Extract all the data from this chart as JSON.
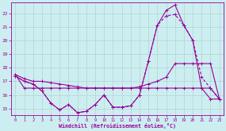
{
  "xlabel": "Windchill (Refroidissement éolien,°C)",
  "background_color": "#cceef0",
  "grid_color": "#aacccc",
  "line_color": "#990099",
  "x_values": [
    0,
    1,
    2,
    3,
    4,
    5,
    6,
    7,
    8,
    9,
    10,
    11,
    12,
    13,
    14,
    15,
    16,
    17,
    18,
    19,
    20,
    21,
    22,
    23
  ],
  "line1": [
    17.4,
    17.0,
    16.8,
    16.3,
    15.4,
    14.9,
    15.3,
    14.7,
    14.8,
    15.3,
    16.0,
    15.1,
    15.1,
    15.2,
    16.0,
    18.5,
    21.1,
    22.2,
    22.6,
    21.1,
    20.0,
    16.5,
    15.7,
    15.7
  ],
  "line2": [
    17.4,
    17.0,
    16.8,
    16.3,
    15.4,
    14.9,
    15.3,
    14.7,
    14.8,
    15.3,
    16.0,
    15.1,
    15.1,
    15.2,
    16.0,
    18.5,
    21.1,
    21.8,
    21.9,
    21.1,
    20.0,
    17.3,
    16.5,
    15.7
  ],
  "line3": [
    17.5,
    17.2,
    17.0,
    17.0,
    16.9,
    16.8,
    16.7,
    16.6,
    16.5,
    16.5,
    16.5,
    16.5,
    16.5,
    16.5,
    16.6,
    16.8,
    17.0,
    17.3,
    18.3,
    18.3,
    18.3,
    18.3,
    18.3,
    15.7
  ],
  "line4": [
    17.5,
    16.5,
    16.5,
    16.5,
    16.5,
    16.5,
    16.5,
    16.5,
    16.5,
    16.5,
    16.5,
    16.5,
    16.5,
    16.5,
    16.5,
    16.5,
    16.5,
    16.5,
    16.5,
    16.5,
    16.5,
    16.5,
    16.5,
    15.7
  ],
  "ylim": [
    14.5,
    22.8
  ],
  "xlim": [
    -0.5,
    23.5
  ],
  "yticks": [
    15,
    16,
    17,
    18,
    19,
    20,
    21,
    22
  ],
  "xticks": [
    0,
    1,
    2,
    3,
    4,
    5,
    6,
    7,
    8,
    9,
    10,
    11,
    12,
    13,
    14,
    15,
    16,
    17,
    18,
    19,
    20,
    21,
    22,
    23
  ]
}
